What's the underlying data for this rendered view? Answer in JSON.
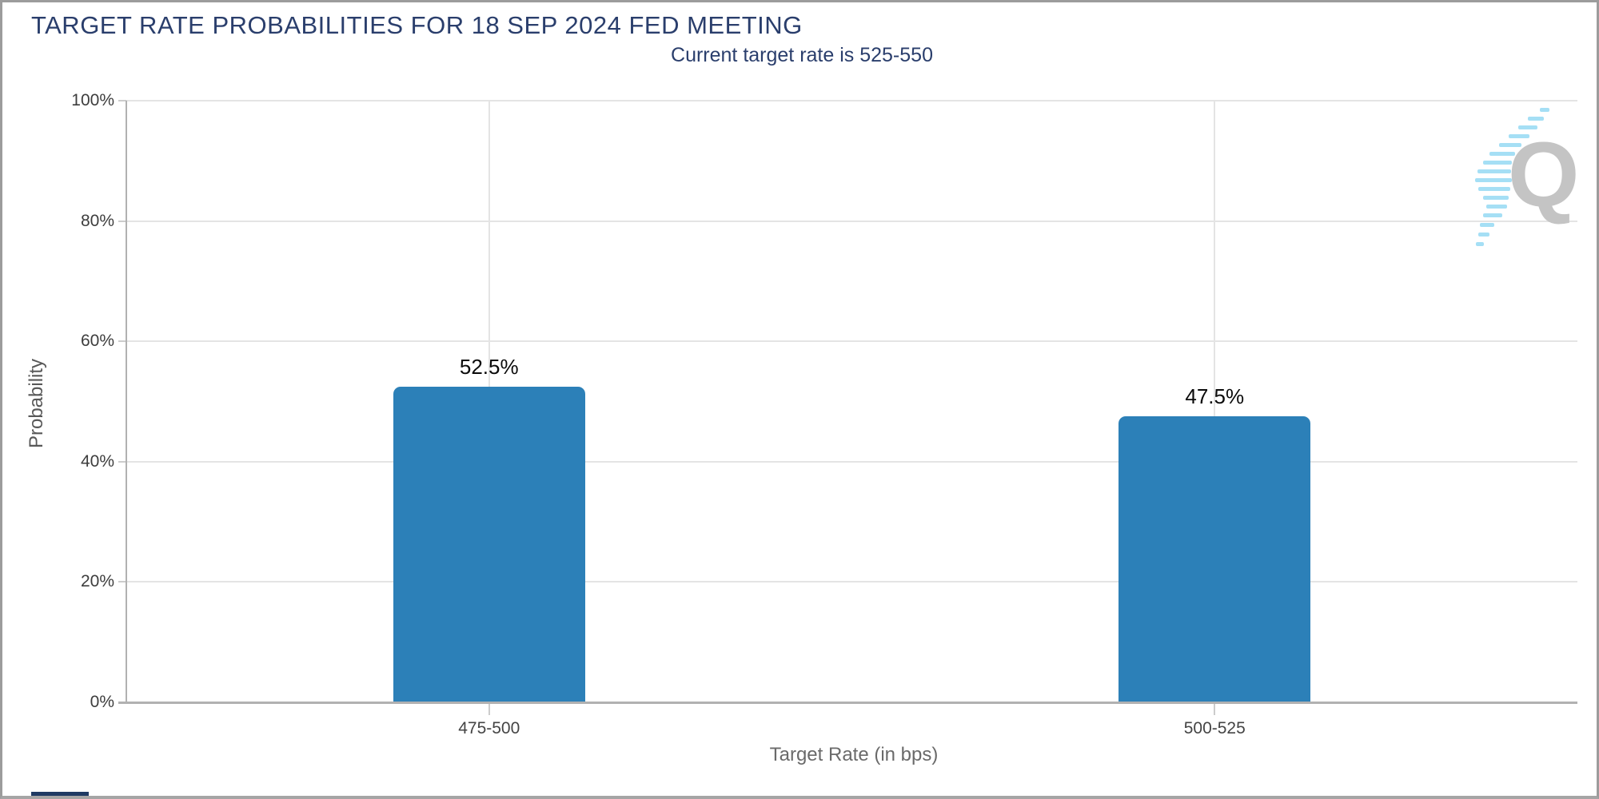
{
  "chart_data": {
    "type": "bar",
    "title": "TARGET RATE PROBABILITIES FOR 18 SEP 2024 FED MEETING",
    "subtitle": "Current target rate is 525-550",
    "categories": [
      "475-500",
      "500-525"
    ],
    "values": [
      52.5,
      47.5
    ],
    "value_labels": [
      "52.5%",
      "47.5%"
    ],
    "xlabel": "Target Rate (in bps)",
    "ylabel": "Probability",
    "ylim": [
      0,
      100
    ],
    "yticks": [
      0,
      20,
      40,
      60,
      80,
      100
    ],
    "ytick_labels": [
      "0%",
      "20%",
      "40%",
      "60%",
      "80%",
      "100%"
    ],
    "grid": true,
    "legend": "none",
    "bar_color": "#2c80b8"
  },
  "watermark": {
    "letter": "Q"
  },
  "colors": {
    "title_navy": "#2a3e6c",
    "bar_blue": "#2c80b8",
    "grid_gray": "#e4e4e4",
    "axis_gray": "#b1b1b1",
    "tick_gray": "#cccccc",
    "tick_label": "#3d3d3d",
    "axis_title_gray": "#6a6a6a",
    "value_label_black": "#0b0b0b",
    "watermark_gray": "#c4c4c4",
    "watermark_blue": "#a5dff5",
    "footer_navy": "#1f3a63"
  }
}
